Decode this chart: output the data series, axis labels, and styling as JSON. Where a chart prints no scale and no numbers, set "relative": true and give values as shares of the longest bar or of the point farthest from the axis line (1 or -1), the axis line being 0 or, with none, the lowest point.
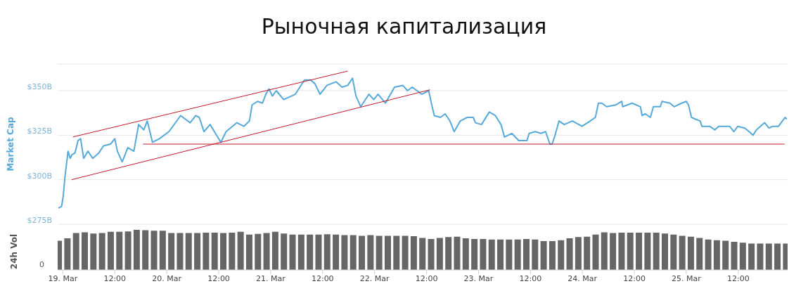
{
  "chart_data": [
    {
      "type": "line",
      "title": "Рыночная капитализация",
      "ylabel": "Market Cap",
      "xlim": [
        "--03-18T22:48",
        "--03-25T23:24"
      ],
      "ylim": [
        275,
        365
      ],
      "yticks": [
        {
          "value": 275,
          "label": "$275B"
        },
        {
          "value": 300,
          "label": "$300B"
        },
        {
          "value": 325,
          "label": "$325B"
        },
        {
          "value": 350,
          "label": "$350B"
        }
      ],
      "grid": "y",
      "tick_labels": "y",
      "series": [
        {
          "color": "#56a9d8",
          "x": [
            "--03-18T23:00",
            "--03-18T23:42",
            "--03-19T00:06",
            "--03-19T00:30",
            "--03-19T01:12",
            "--03-19T01:42",
            "--03-19T02:06",
            "--03-19T02:48",
            "--03-19T03:30",
            "--03-19T04:06",
            "--03-19T04:48",
            "--03-19T05:48",
            "--03-19T06:54",
            "--03-19T08:18",
            "--03-19T09:24",
            "--03-19T11:00",
            "--03-19T12:00",
            "--03-19T12:36",
            "--03-19T13:42",
            "--03-19T15:00",
            "--03-19T16:24",
            "--03-19T17:30",
            "--03-19T18:42",
            "--03-19T19:30",
            "--03-19T20:42",
            "--03-19T22:18",
            "--03-20T00:30",
            "--03-20T03:12",
            "--03-20T04:18",
            "--03-20T05:24",
            "--03-20T06:42",
            "--03-20T07:30",
            "--03-20T08:36",
            "--03-20T10:00",
            "--03-20T11:00",
            "--03-20T12:30",
            "--03-20T13:42",
            "--03-20T16:12",
            "--03-20T17:48",
            "--03-20T19:06",
            "--03-20T19:42",
            "--03-20T21:00",
            "--03-20T22:06",
            "--03-20T22:54",
            "--03-20T23:36",
            "--03-21T00:24",
            "--03-21T01:18",
            "--03-21T03:00",
            "--03-21T05:42",
            "--03-21T07:48",
            "--03-21T09:12",
            "--03-21T10:12",
            "--03-21T11:24",
            "--03-21T13:00",
            "--03-21T15:06",
            "--03-21T16:30",
            "--03-21T17:48",
            "--03-21T18:54",
            "--03-21T19:42",
            "--03-21T20:48",
            "--03-21T22:42",
            "--03-21T23:48",
            "--03-22T00:48",
            "--03-22T02:30",
            "--03-22T04:36",
            "--03-22T06:30",
            "--03-22T07:36",
            "--03-22T08:42",
            "--03-22T10:54",
            "--03-22T12:30",
            "--03-22T13:18",
            "--03-22T13:48",
            "--03-22T15:12",
            "--03-22T16:18",
            "--03-22T17:24",
            "--03-22T18:24",
            "--03-22T19:48",
            "--03-22T21:24",
            "--03-22T22:48",
            "--03-22T23:18",
            "--03-23T00:42",
            "--03-23T02:30",
            "--03-23T03:54",
            "--03-23T05:12",
            "--03-23T06:00",
            "--03-23T07:42",
            "--03-23T09:18",
            "--03-23T11:12",
            "--03-23T11:42",
            "--03-23T13:06",
            "--03-23T14:24",
            "--03-23T15:30",
            "--03-23T16:30",
            "--03-23T17:00",
            "--03-23T17:42",
            "--03-23T18:36",
            "--03-23T19:48",
            "--03-23T21:42",
            "--03-23T23:54",
            "--03-24T01:48",
            "--03-24T03:00",
            "--03-24T03:42",
            "--03-24T04:30",
            "--03-24T05:36",
            "--03-24T07:42",
            "--03-24T09:06",
            "--03-24T09:18",
            "--03-24T11:30",
            "--03-24T13:24",
            "--03-24T13:48",
            "--03-24T14:30",
            "--03-24T15:42",
            "--03-24T16:24",
            "--03-24T18:00",
            "--03-24T18:24",
            "--03-24T20:12",
            "--03-24T21:12",
            "--03-24T22:54",
            "--03-25T00:00",
            "--03-25T00:30",
            "--03-25T01:12",
            "--03-25T02:06",
            "--03-25T03:12",
            "--03-25T03:36",
            "--03-25T05:24",
            "--03-25T06:36",
            "--03-25T07:30",
            "--03-25T08:54",
            "--03-25T10:00",
            "--03-25T11:00",
            "--03-25T11:54",
            "--03-25T13:30",
            "--03-25T14:30",
            "--03-25T15:24",
            "--03-25T16:12",
            "--03-25T18:06",
            "--03-25T19:06",
            "--03-25T20:00",
            "--03-25T21:18",
            "--03-25T22:12",
            "--03-25T22:48",
            "--03-25T23:12"
          ],
          "values": [
            284,
            285,
            291,
            302,
            316,
            312,
            314,
            315,
            322,
            323,
            312,
            316,
            312,
            315,
            319,
            320,
            323,
            316,
            310,
            318,
            316,
            331,
            328,
            333,
            321,
            323,
            327,
            336,
            334,
            332,
            336,
            335,
            327,
            331,
            327,
            321,
            327,
            332,
            330,
            333,
            342,
            344,
            343,
            348,
            351,
            347,
            350,
            345,
            348,
            356,
            356,
            354,
            348,
            353,
            355,
            352,
            353,
            357,
            347,
            341,
            348,
            345,
            348,
            343,
            352,
            353,
            350,
            352,
            348,
            350,
            341,
            336,
            335,
            337,
            333,
            327,
            333,
            335,
            335,
            332,
            331,
            338,
            336,
            331,
            324,
            326,
            322,
            322,
            326,
            327,
            326,
            327,
            320,
            320,
            325,
            333,
            331,
            333,
            330,
            333,
            335,
            343,
            343,
            341,
            342,
            344,
            341,
            343,
            341,
            336,
            337,
            335,
            341,
            341,
            344,
            343,
            341,
            343,
            344,
            342,
            335,
            334,
            333,
            330,
            330,
            328,
            330,
            330,
            330,
            327,
            330,
            329,
            327,
            325,
            328,
            332,
            329,
            330,
            330,
            333,
            335,
            334
          ]
        },
        {
          "type": "line",
          "color": "#c0182a",
          "x": [
            "--03-19T02:18",
            "--03-21T17:48"
          ],
          "values": [
            324,
            361
          ]
        },
        {
          "type": "line",
          "color": "#c0182a",
          "x": [
            "--03-19T02:00",
            "--03-22T12:48"
          ],
          "values": [
            300,
            350.5
          ]
        },
        {
          "type": "line",
          "color": "#c0182a",
          "x": [
            "--03-19T18:30",
            "--03-25T22:42"
          ],
          "values": [
            320,
            320
          ]
        }
      ]
    },
    {
      "type": "bar",
      "ylabel": "24h Vol",
      "relative": true,
      "tick_labels": "x",
      "annotations": [
        "0"
      ],
      "xlim": [
        "--03-18T22:48",
        "--03-25T23:24"
      ],
      "xticks": [
        {
          "value": "--03-19",
          "label": "19. Mar"
        },
        {
          "value": "--03-19T12:00",
          "label": "12:00"
        },
        {
          "value": "--03-20",
          "label": "20. Mar"
        },
        {
          "value": "--03-20T12:00",
          "label": "12:00"
        },
        {
          "value": "--03-21",
          "label": "21. Mar"
        },
        {
          "value": "--03-21T12:00",
          "label": "12:00"
        },
        {
          "value": "--03-22",
          "label": "22. Mar"
        },
        {
          "value": "--03-22T12:00",
          "label": "12:00"
        },
        {
          "value": "--03-23",
          "label": "23. Mar"
        },
        {
          "value": "--03-23T12:00",
          "label": "12:00"
        },
        {
          "value": "--03-24",
          "label": "24. Mar"
        },
        {
          "value": "--03-24T12:00",
          "label": "12:00"
        },
        {
          "value": "--03-25",
          "label": "25. Mar"
        },
        {
          "value": "--03-25T12:00",
          "label": "12:00"
        }
      ],
      "x": [
        "--03-18T23:00",
        "--03-19T01:00",
        "--03-19T03:00",
        "--03-19T05:00",
        "--03-19T07:00",
        "--03-19T09:00",
        "--03-19T11:00",
        "--03-19T13:00",
        "--03-19T15:00",
        "--03-19T17:00",
        "--03-19T19:00",
        "--03-19T21:00",
        "--03-19T23:00",
        "--03-20T01:00",
        "--03-20T03:00",
        "--03-20T05:00",
        "--03-20T07:00",
        "--03-20T09:00",
        "--03-20T11:00",
        "--03-20T13:00",
        "--03-20T15:00",
        "--03-20T17:00",
        "--03-20T19:00",
        "--03-20T21:00",
        "--03-20T23:00",
        "--03-21T01:00",
        "--03-21T03:00",
        "--03-21T05:00",
        "--03-21T07:00",
        "--03-21T09:00",
        "--03-21T11:00",
        "--03-21T13:00",
        "--03-21T15:00",
        "--03-21T17:00",
        "--03-21T19:00",
        "--03-21T21:00",
        "--03-21T23:00",
        "--03-22T01:00",
        "--03-22T03:00",
        "--03-22T05:00",
        "--03-22T07:00",
        "--03-22T09:00",
        "--03-22T11:00",
        "--03-22T13:00",
        "--03-22T15:00",
        "--03-22T17:00",
        "--03-22T19:00",
        "--03-22T21:00",
        "--03-22T23:00",
        "--03-23T01:00",
        "--03-23T03:00",
        "--03-23T05:00",
        "--03-23T07:00",
        "--03-23T09:00",
        "--03-23T11:00",
        "--03-23T13:00",
        "--03-23T15:00",
        "--03-23T17:00",
        "--03-23T19:00",
        "--03-23T21:00",
        "--03-23T23:00",
        "--03-24T01:00",
        "--03-24T03:00",
        "--03-24T05:00",
        "--03-24T07:00",
        "--03-24T09:00",
        "--03-24T11:00",
        "--03-24T13:00",
        "--03-24T15:00",
        "--03-24T17:00",
        "--03-24T19:00",
        "--03-24T21:00",
        "--03-24T23:00",
        "--03-25T01:00",
        "--03-25T03:00",
        "--03-25T05:00",
        "--03-25T07:00",
        "--03-25T09:00",
        "--03-25T11:00",
        "--03-25T13:00",
        "--03-25T15:00",
        "--03-25T17:00",
        "--03-25T19:00",
        "--03-25T21:00",
        "--03-25T23:00"
      ],
      "color": "#666666",
      "values": [
        0.73,
        0.79,
        0.92,
        0.94,
        0.91,
        0.92,
        0.95,
        0.95,
        0.96,
        1,
        0.99,
        0.98,
        0.98,
        0.92,
        0.92,
        0.92,
        0.92,
        0.93,
        0.93,
        0.92,
        0.93,
        0.95,
        0.88,
        0.9,
        0.92,
        0.95,
        0.91,
        0.88,
        0.88,
        0.88,
        0.88,
        0.89,
        0.88,
        0.87,
        0.87,
        0.85,
        0.87,
        0.85,
        0.85,
        0.85,
        0.85,
        0.84,
        0.8,
        0.77,
        0.8,
        0.82,
        0.83,
        0.79,
        0.77,
        0.77,
        0.76,
        0.76,
        0.76,
        0.76,
        0.77,
        0.76,
        0.72,
        0.72,
        0.74,
        0.79,
        0.82,
        0.83,
        0.88,
        0.94,
        0.92,
        0.93,
        0.93,
        0.93,
        0.93,
        0.93,
        0.91,
        0.88,
        0.85,
        0.83,
        0.8,
        0.76,
        0.74,
        0.73,
        0.7,
        0.68,
        0.66,
        0.66,
        0.66,
        0.66,
        0.66
      ]
    }
  ]
}
